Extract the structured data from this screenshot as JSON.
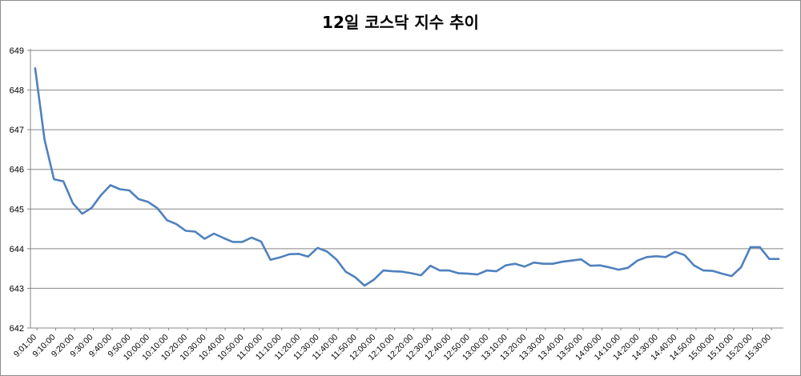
{
  "chart_data": {
    "type": "line",
    "title": "12일 코스닥 지수 추이",
    "xlabel": "",
    "ylabel": "",
    "ylim": [
      642,
      649
    ],
    "yticks": [
      642,
      643,
      644,
      645,
      646,
      647,
      648,
      649
    ],
    "grid": true,
    "legend": "none",
    "line_color": "#4f81bd",
    "gridline_color": "#868686",
    "x_tick_labels": [
      "9:01:00",
      "9:10:00",
      "9:20:00",
      "9:30:00",
      "9:40:00",
      "9:50:00",
      "10:00:00",
      "10:10:00",
      "10:20:00",
      "10:30:00",
      "10:40:00",
      "10:50:00",
      "11:00:00",
      "11:10:00",
      "11:20:00",
      "11:30:00",
      "11:40:00",
      "11:50:00",
      "12:00:00",
      "12:10:00",
      "12:20:00",
      "12:30:00",
      "12:40:00",
      "12:50:00",
      "13:00:00",
      "13:10:00",
      "13:20:00",
      "13:30:00",
      "13:40:00",
      "13:50:00",
      "14:00:00",
      "14:10:00",
      "14:20:00",
      "14:30:00",
      "14:40:00",
      "14:50:00",
      "15:00:00",
      "15:10:00",
      "15:20:00",
      "15:30:00"
    ],
    "series": [
      {
        "values": [
          648.55,
          646.75,
          645.75,
          645.7,
          645.15,
          644.88,
          645.03,
          645.35,
          645.6,
          645.5,
          645.47,
          645.25,
          645.18,
          645.02,
          644.72,
          644.62,
          644.45,
          644.43,
          644.25,
          644.38,
          644.27,
          644.17,
          644.17,
          644.28,
          644.18,
          643.72,
          643.78,
          643.86,
          643.87,
          643.8,
          644.02,
          643.93,
          643.73,
          643.42,
          643.28,
          643.07,
          643.22,
          643.45,
          643.43,
          643.42,
          643.38,
          643.33,
          643.57,
          643.45,
          643.45,
          643.38,
          643.37,
          643.35,
          643.45,
          643.43,
          643.58,
          643.62,
          643.55,
          643.65,
          643.62,
          643.62,
          643.67,
          643.7,
          643.73,
          643.57,
          643.58,
          643.53,
          643.47,
          643.52,
          643.7,
          643.79,
          643.81,
          643.79,
          643.92,
          643.84,
          643.58,
          643.45,
          643.44,
          643.37,
          643.31,
          643.53,
          644.04,
          644.04,
          643.74,
          643.74
        ]
      }
    ]
  }
}
